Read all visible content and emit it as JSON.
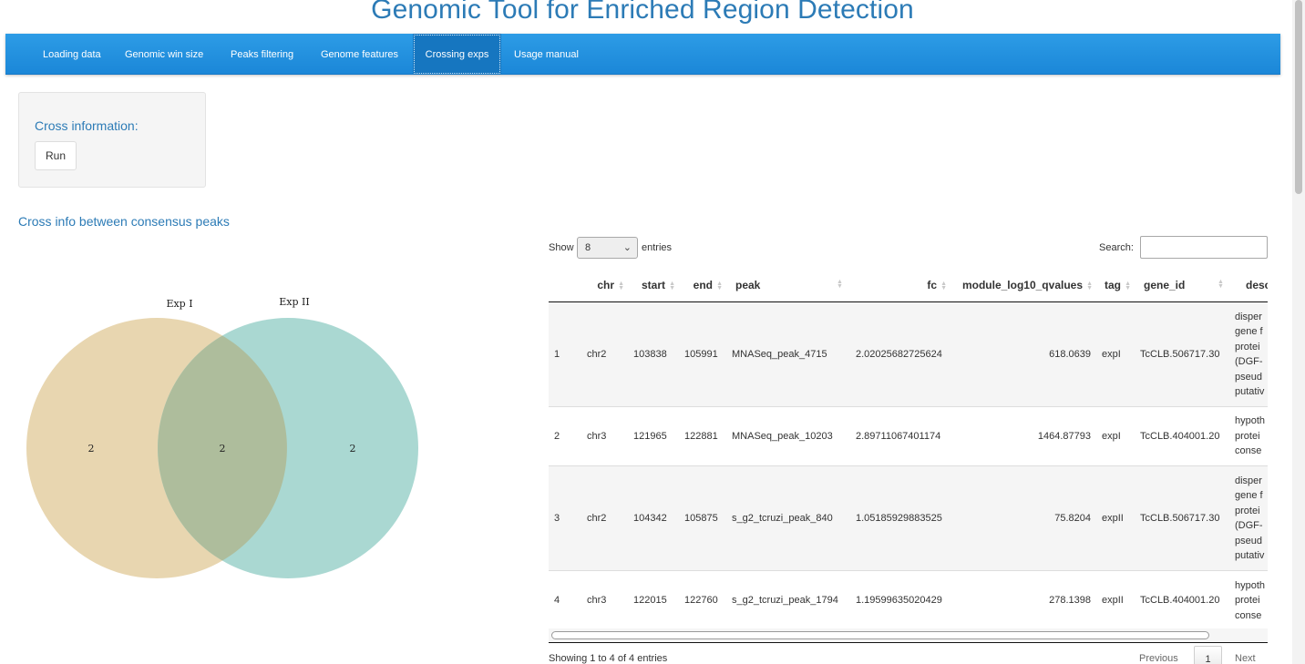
{
  "app": {
    "title": "Genomic Tool for Enriched Region Detection"
  },
  "nav": {
    "items": [
      {
        "label": "Loading data"
      },
      {
        "label": "Genomic win size"
      },
      {
        "label": "Peaks filtering"
      },
      {
        "label": "Genome features"
      },
      {
        "label": "Crossing exps"
      },
      {
        "label": "Usage manual"
      }
    ],
    "active": "Crossing exps"
  },
  "panel": {
    "title": "Cross information:",
    "run_label": "Run"
  },
  "section": {
    "title": "Cross info between consensus peaks"
  },
  "venn": {
    "set_labels": [
      "Exp I",
      "Exp II"
    ],
    "counts": {
      "only_a": "2",
      "both": "2",
      "only_b": "2"
    },
    "colors": {
      "a": "#e8d6b0",
      "b": "#aad8d2",
      "overlap": "#aebd9c"
    }
  },
  "table": {
    "show_label": "Show",
    "entries_label": "entries",
    "page_length": "8",
    "search_label": "Search:",
    "search_value": "",
    "columns": [
      "",
      "chr",
      "start",
      "end",
      "peak",
      "fc",
      "module_log10_qvalues",
      "tag",
      "gene_id",
      "desc"
    ],
    "rows": [
      {
        "idx": "1",
        "chr": "chr2",
        "start": "103838",
        "end": "105991",
        "peak": "MNASeq_peak_4715",
        "fc": "2.02025682725624",
        "q": "618.0639",
        "tag": "expI",
        "gene_id": "TcCLB.506717.30",
        "desc": [
          "disper",
          "gene f",
          "protei",
          "(DGF-",
          "pseud",
          "putativ"
        ]
      },
      {
        "idx": "2",
        "chr": "chr3",
        "start": "121965",
        "end": "122881",
        "peak": "MNASeq_peak_10203",
        "fc": "2.89711067401174",
        "q": "1464.87793",
        "tag": "expI",
        "gene_id": "TcCLB.404001.20",
        "desc": [
          "hypoth",
          "protei",
          "conse"
        ]
      },
      {
        "idx": "3",
        "chr": "chr2",
        "start": "104342",
        "end": "105875",
        "peak": "s_g2_tcruzi_peak_840",
        "fc": "1.05185929883525",
        "q": "75.8204",
        "tag": "expII",
        "gene_id": "TcCLB.506717.30",
        "desc": [
          "disper",
          "gene f",
          "protei",
          "(DGF-",
          "pseud",
          "putativ"
        ]
      },
      {
        "idx": "4",
        "chr": "chr3",
        "start": "122015",
        "end": "122760",
        "peak": "s_g2_tcruzi_peak_1794",
        "fc": "1.19599635020429",
        "q": "278.1398",
        "tag": "expII",
        "gene_id": "TcCLB.404001.20",
        "desc": [
          "hypoth",
          "protei",
          "conse"
        ]
      }
    ],
    "info": "Showing 1 to 4 of 4 entries",
    "pagination": {
      "previous": "Previous",
      "current": "1",
      "next": "Next"
    }
  }
}
